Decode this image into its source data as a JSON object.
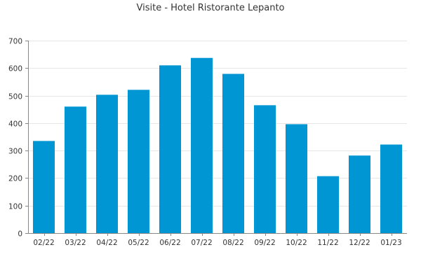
{
  "chart_data": {
    "type": "bar",
    "title": "Visite - Hotel Ristorante Lepanto",
    "xlabel": "",
    "ylabel": "",
    "categories": [
      "02/22",
      "03/22",
      "04/22",
      "05/22",
      "06/22",
      "07/22",
      "08/22",
      "09/22",
      "10/22",
      "11/22",
      "12/22",
      "01/23"
    ],
    "values": [
      335,
      460,
      503,
      521,
      610,
      637,
      579,
      465,
      396,
      207,
      282,
      322
    ],
    "ylim": [
      0,
      700
    ],
    "yticks": [
      0,
      100,
      200,
      300,
      400,
      500,
      600,
      700
    ],
    "grid": true,
    "legend": "none",
    "bar_color": "#0095d3"
  }
}
